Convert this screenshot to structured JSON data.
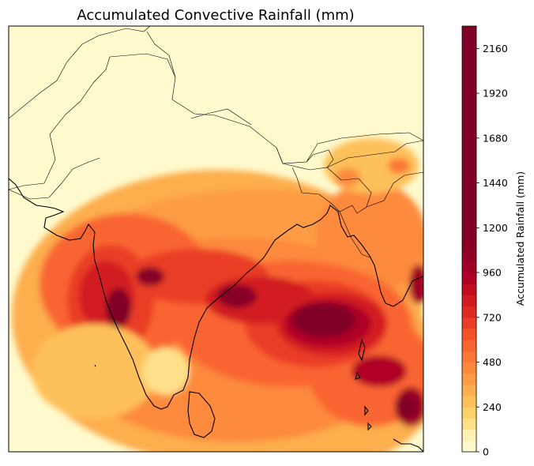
{
  "chart_data": {
    "type": "heatmap",
    "title": "Accumulated Convective Rainfall (mm)",
    "colorbar": {
      "label": "Accumulated Rainfall (mm)",
      "ticks": [
        0,
        240,
        480,
        720,
        960,
        1200,
        1440,
        1680,
        1920,
        2160
      ],
      "range": [
        0,
        2280
      ],
      "levels": [
        0,
        60,
        120,
        180,
        240,
        300,
        360,
        420,
        480,
        540,
        600,
        660,
        720,
        780,
        840,
        900,
        960,
        1020,
        1080,
        1140,
        1200,
        2280
      ],
      "colors": [
        "#fffacd",
        "#fff0b3",
        "#ffe08a",
        "#fed06a",
        "#fec05a",
        "#fdae4e",
        "#fd9c45",
        "#fd8a3c",
        "#fc7836",
        "#f96530",
        "#f4512a",
        "#ea3d25",
        "#e02a21",
        "#d21a20",
        "#c20c22",
        "#b00026",
        "#a00026",
        "#920026",
        "#880026",
        "#820026",
        "#800026"
      ]
    },
    "map": {
      "region": "South Asia / Indian subcontinent",
      "features": [
        "coastlines",
        "country borders"
      ],
      "axes_ticks": "none",
      "rainfall_maxima": [
        {
          "area": "Western Ghats coast",
          "value_mm": 1400
        },
        {
          "area": "Central India",
          "value_mm": 1100
        },
        {
          "area": "Bay of Bengal (central)",
          "value_mm": 1600
        },
        {
          "area": "Andaman Sea",
          "value_mm": 1000
        },
        {
          "area": "Southeast Bay of Bengal",
          "value_mm": 1200
        },
        {
          "area": "Myanmar coast",
          "value_mm": 1000
        },
        {
          "area": "Northeast India",
          "value_mm": 700
        }
      ]
    }
  }
}
